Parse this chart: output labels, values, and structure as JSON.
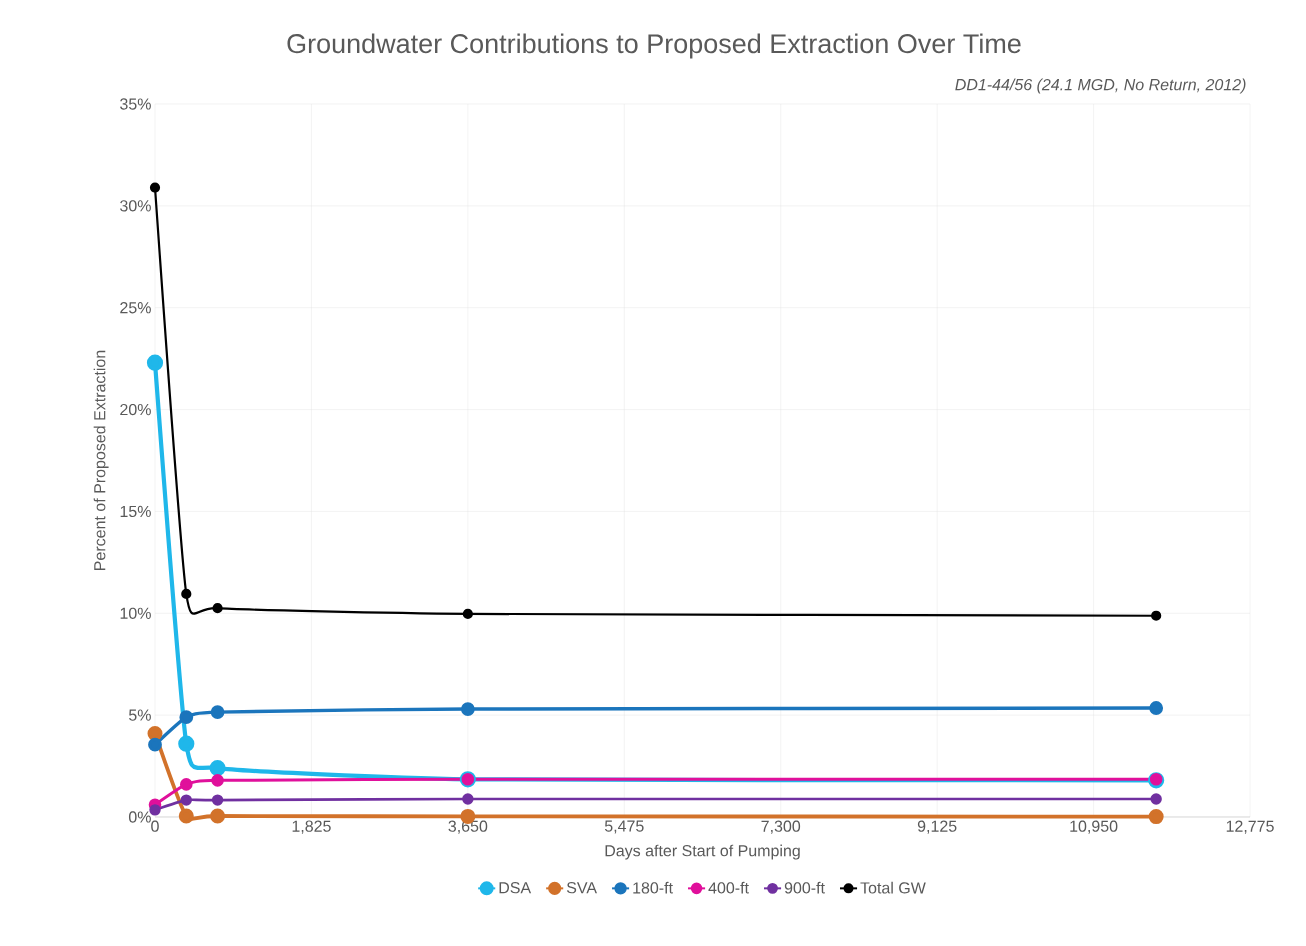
{
  "chart_data": {
    "type": "line",
    "title": "Groundwater Contributions to Proposed Extraction Over Time",
    "subtitle": "DD1-44/56 (24.1 MGD, No Return, 2012)",
    "xlabel": "Days after Start of Pumping",
    "ylabel": "Percent of Proposed Extraction",
    "x": [
      0,
      365,
      730,
      3650,
      11680
    ],
    "series": [
      {
        "name": "DSA",
        "color": "#1fb7ea",
        "values": [
          22.3,
          3.6,
          2.4,
          1.85,
          1.8
        ]
      },
      {
        "name": "SVA",
        "color": "#d2722a",
        "values": [
          4.1,
          0.05,
          0.05,
          0.03,
          0.02
        ]
      },
      {
        "name": "180-ft",
        "color": "#1b75bc",
        "values": [
          3.55,
          4.9,
          5.15,
          5.3,
          5.35
        ]
      },
      {
        "name": "400-ft",
        "color": "#e0109b",
        "values": [
          0.6,
          1.6,
          1.8,
          1.85,
          1.85
        ]
      },
      {
        "name": "900-ft",
        "color": "#7030a0",
        "values": [
          0.35,
          0.83,
          0.83,
          0.88,
          0.88
        ]
      },
      {
        "name": "Total GW",
        "color": "#000000",
        "values": [
          30.9,
          10.95,
          10.25,
          9.97,
          9.88
        ]
      }
    ],
    "xlim": [
      0,
      12775
    ],
    "xticks": [
      0,
      {
        "value": 1825,
        "label": "1,825"
      },
      {
        "value": 3650,
        "label": "3,650"
      },
      {
        "value": 5475,
        "label": "5,475"
      },
      {
        "value": 7300,
        "label": "7,300"
      },
      {
        "value": 9125,
        "label": "9,125"
      },
      {
        "value": 10950,
        "label": "10,950"
      },
      {
        "value": 12775,
        "label": "12,775"
      }
    ],
    "ylim": [
      0,
      35
    ],
    "yticks": [
      {
        "value": 0,
        "label": "0%"
      },
      {
        "value": 5,
        "label": "5%"
      },
      {
        "value": 10,
        "label": "10%"
      },
      {
        "value": 15,
        "label": "15%"
      },
      {
        "value": 20,
        "label": "20%"
      },
      {
        "value": 25,
        "label": "25%"
      },
      {
        "value": 30,
        "label": "30%"
      },
      {
        "value": 35,
        "label": "35%"
      }
    ],
    "grid": true,
    "legend": "bottom",
    "marker": "circle",
    "line_style": "solid"
  }
}
